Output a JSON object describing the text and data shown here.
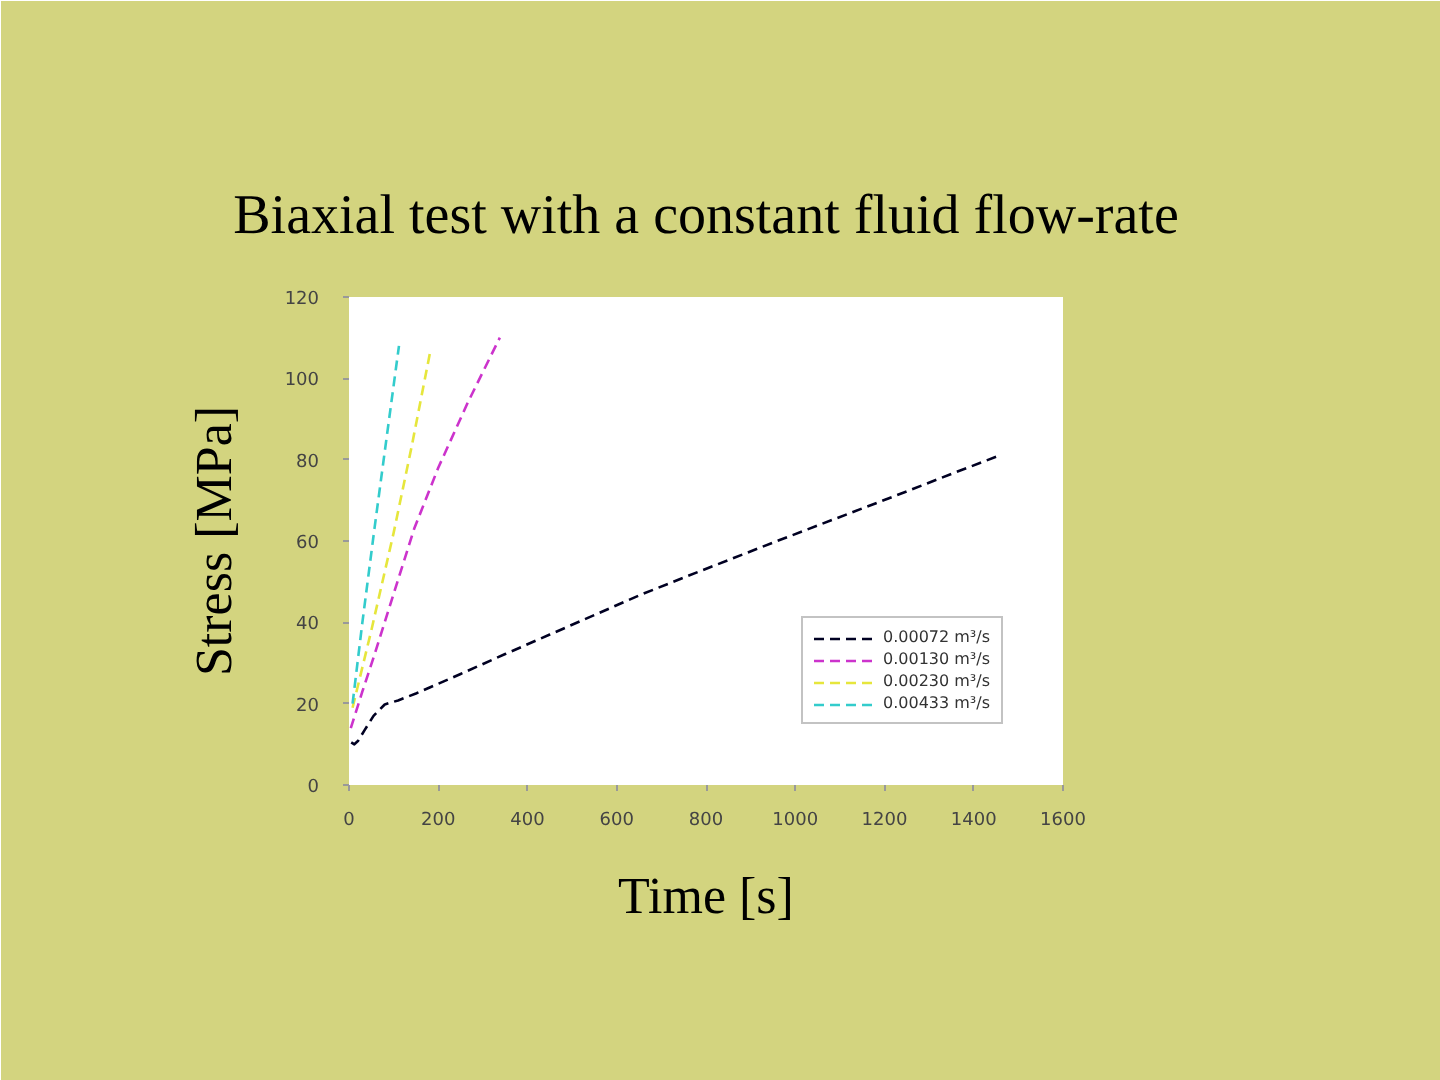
{
  "chart_data": {
    "type": "line",
    "title": "Biaxial test with a constant fluid flow-rate",
    "xlabel": "Time [s]",
    "ylabel": "Stress [MPa]",
    "xlim": [
      0,
      1600
    ],
    "ylim": [
      0,
      120
    ],
    "xticks": [
      0,
      200,
      400,
      600,
      800,
      1000,
      1200,
      1400,
      1600
    ],
    "yticks": [
      0,
      20,
      40,
      60,
      80,
      100,
      120
    ],
    "legend": "bottom right",
    "line_style": "dashed",
    "series": [
      {
        "name": "0.00072 m³/s",
        "color": "#000022",
        "x": [
          5,
          12,
          20,
          35,
          55,
          80,
          110,
          150,
          250,
          350,
          450,
          550,
          654,
          750,
          850,
          950,
          1050,
          1150,
          1250,
          1350,
          1457
        ],
        "values": [
          10.5,
          10,
          10.8,
          13.5,
          17,
          19.8,
          20.8,
          22.5,
          27.3,
          32.2,
          37,
          41.8,
          46.8,
          51,
          55.3,
          59.6,
          63.8,
          68,
          72.2,
          76.5,
          81
        ]
      },
      {
        "name": "0.00130 m³/s",
        "color": "#cc33cc",
        "x": [
          4,
          30,
          57,
          100,
          146,
          200,
          266,
          338
        ],
        "values": [
          14,
          23,
          32,
          47,
          63,
          78,
          94,
          110
        ]
      },
      {
        "name": "0.00230 m³/s",
        "color": "#e6e63c",
        "x": [
          8,
          50,
          100,
          140,
          181
        ],
        "values": [
          19,
          38,
          62,
          83,
          106
        ]
      },
      {
        "name": "0.00433 m³/s",
        "color": "#33cccc",
        "x": [
          8,
          30,
          57,
          85,
          112
        ],
        "values": [
          20,
          40,
          63,
          86,
          108
        ]
      }
    ]
  }
}
